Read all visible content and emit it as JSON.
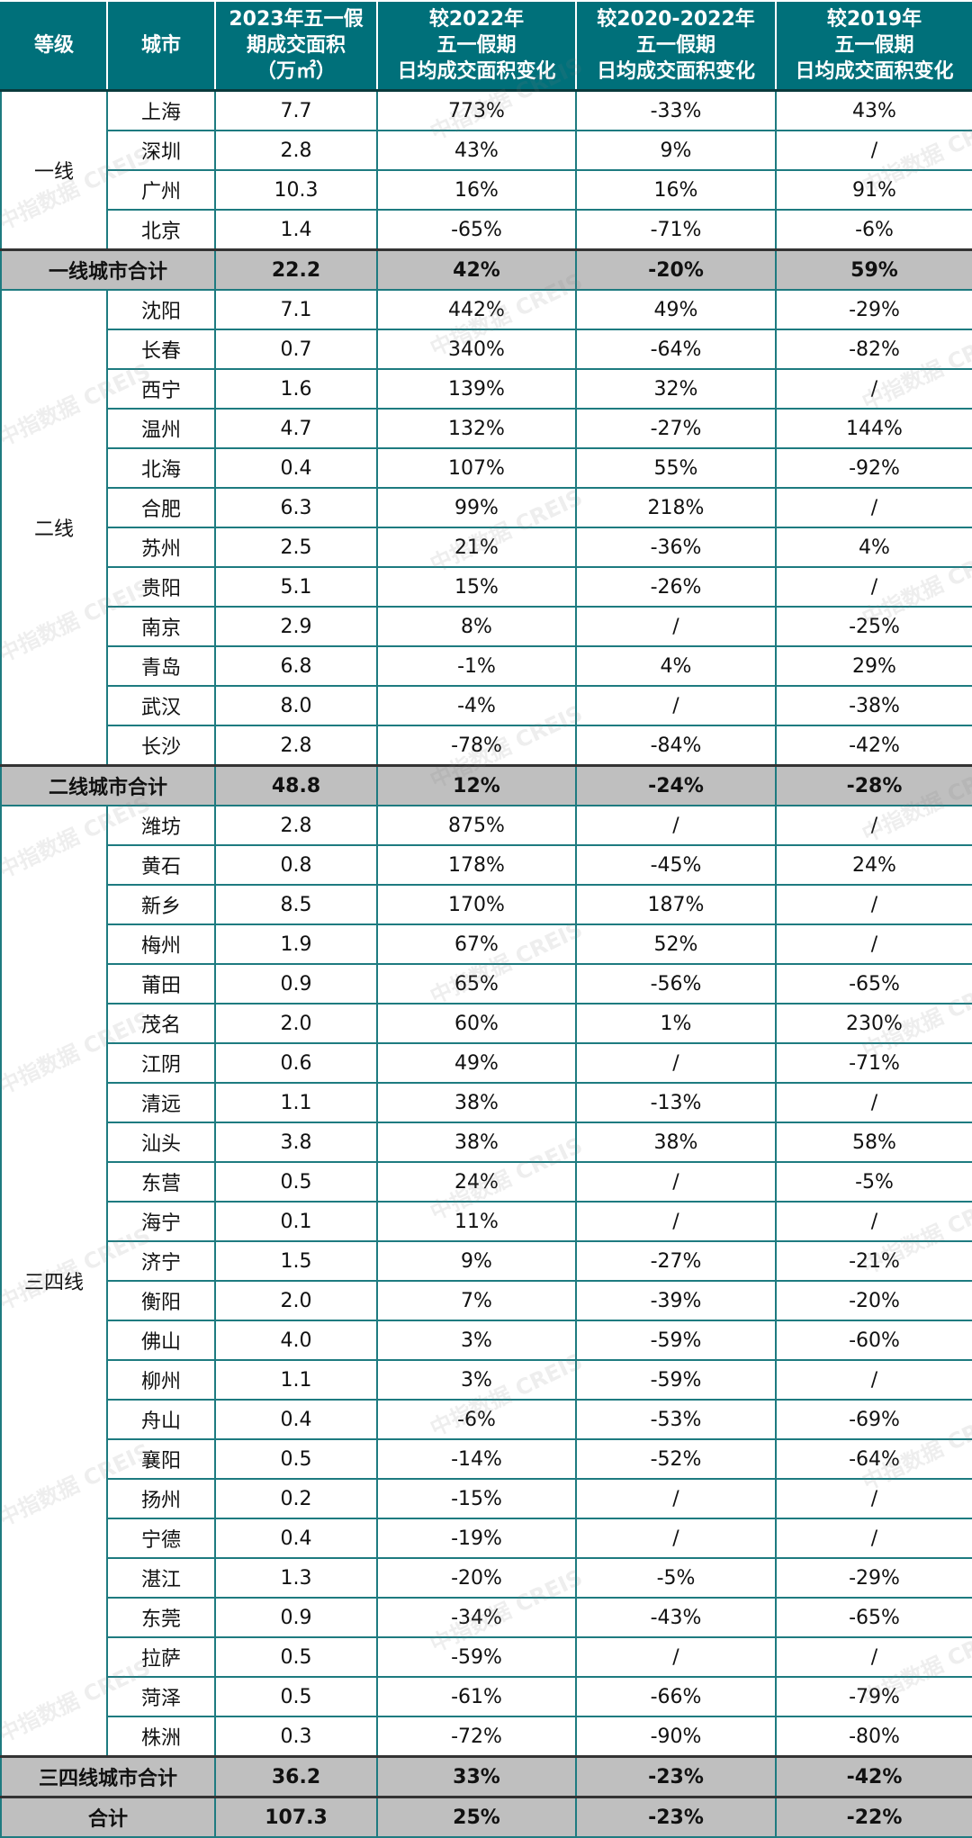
{
  "header": [
    "等级",
    "城市",
    "2023年五一假\n期成交面积\n（万㎡）",
    "较2022年\n五一假期\n日均成交面积变化",
    "较2020-2022年\n五一假期\n日均成交面积变化",
    "较2019年\n五一假期\n日均成交面积变化"
  ],
  "groups": [
    {
      "tier": "一线",
      "rows": [
        [
          "上海",
          "7.7",
          "773%",
          "-33%",
          "43%"
        ],
        [
          "深圳",
          "2.8",
          "43%",
          "9%",
          "/"
        ],
        [
          "广州",
          "10.3",
          "16%",
          "16%",
          "91%"
        ],
        [
          "北京",
          "1.4",
          "-65%",
          "-71%",
          "-6%"
        ]
      ],
      "total": [
        "一线城市合计",
        "22.2",
        "42%",
        "-20%",
        "59%"
      ]
    },
    {
      "tier": "二线",
      "rows": [
        [
          "沈阳",
          "7.1",
          "442%",
          "49%",
          "-29%"
        ],
        [
          "长春",
          "0.7",
          "340%",
          "-64%",
          "-82%"
        ],
        [
          "西宁",
          "1.6",
          "139%",
          "32%",
          "/"
        ],
        [
          "温州",
          "4.7",
          "132%",
          "-27%",
          "144%"
        ],
        [
          "北海",
          "0.4",
          "107%",
          "55%",
          "-92%"
        ],
        [
          "合肥",
          "6.3",
          "99%",
          "218%",
          "/"
        ],
        [
          "苏州",
          "2.5",
          "21%",
          "-36%",
          "4%"
        ],
        [
          "贵阳",
          "5.1",
          "15%",
          "-26%",
          "/"
        ],
        [
          "南京",
          "2.9",
          "8%",
          "/",
          "-25%"
        ],
        [
          "青岛",
          "6.8",
          "-1%",
          "4%",
          "29%"
        ],
        [
          "武汉",
          "8.0",
          "-4%",
          "/",
          "-38%"
        ],
        [
          "长沙",
          "2.8",
          "-78%",
          "-84%",
          "-42%"
        ]
      ],
      "total": [
        "二线城市合计",
        "48.8",
        "12%",
        "-24%",
        "-28%"
      ]
    },
    {
      "tier": "三四线",
      "rows": [
        [
          "潍坊",
          "2.8",
          "875%",
          "/",
          "/"
        ],
        [
          "黄石",
          "0.8",
          "178%",
          "-45%",
          "24%"
        ],
        [
          "新乡",
          "8.5",
          "170%",
          "187%",
          "/"
        ],
        [
          "梅州",
          "1.9",
          "67%",
          "52%",
          "/"
        ],
        [
          "莆田",
          "0.9",
          "65%",
          "-56%",
          "-65%"
        ],
        [
          "茂名",
          "2.0",
          "60%",
          "1%",
          "230%"
        ],
        [
          "江阴",
          "0.6",
          "49%",
          "/",
          "-71%"
        ],
        [
          "清远",
          "1.1",
          "38%",
          "-13%",
          "/"
        ],
        [
          "汕头",
          "3.8",
          "38%",
          "38%",
          "58%"
        ],
        [
          "东营",
          "0.5",
          "24%",
          "/",
          "-5%"
        ],
        [
          "海宁",
          "0.1",
          "11%",
          "/",
          "/"
        ],
        [
          "济宁",
          "1.5",
          "9%",
          "-27%",
          "-21%"
        ],
        [
          "衡阳",
          "2.0",
          "7%",
          "-39%",
          "-20%"
        ],
        [
          "佛山",
          "4.0",
          "3%",
          "-59%",
          "-60%"
        ],
        [
          "柳州",
          "1.1",
          "3%",
          "-59%",
          "/"
        ],
        [
          "舟山",
          "0.4",
          "-6%",
          "-53%",
          "-69%"
        ],
        [
          "襄阳",
          "0.5",
          "-14%",
          "-52%",
          "-64%"
        ],
        [
          "扬州",
          "0.2",
          "-15%",
          "/",
          "/"
        ],
        [
          "宁德",
          "0.4",
          "-19%",
          "/",
          "/"
        ],
        [
          "湛江",
          "1.3",
          "-20%",
          "-5%",
          "-29%"
        ],
        [
          "东莞",
          "0.9",
          "-34%",
          "-43%",
          "-65%"
        ],
        [
          "拉萨",
          "0.5",
          "-59%",
          "/",
          "/"
        ],
        [
          "菏泽",
          "0.5",
          "-61%",
          "-66%",
          "-79%"
        ],
        [
          "株洲",
          "0.3",
          "-72%",
          "-90%",
          "-80%"
        ]
      ],
      "total": [
        "三四线城市合计",
        "36.2",
        "33%",
        "-23%",
        "-42%"
      ]
    }
  ],
  "grand_total": [
    "合计",
    "107.3",
    "25%",
    "-23%",
    "-22%"
  ],
  "watermark": "中指数据 CREIS",
  "colors": {
    "header_bg": "#00707a",
    "border": "#1e7b80",
    "total_bg": "#bfbfbf"
  }
}
